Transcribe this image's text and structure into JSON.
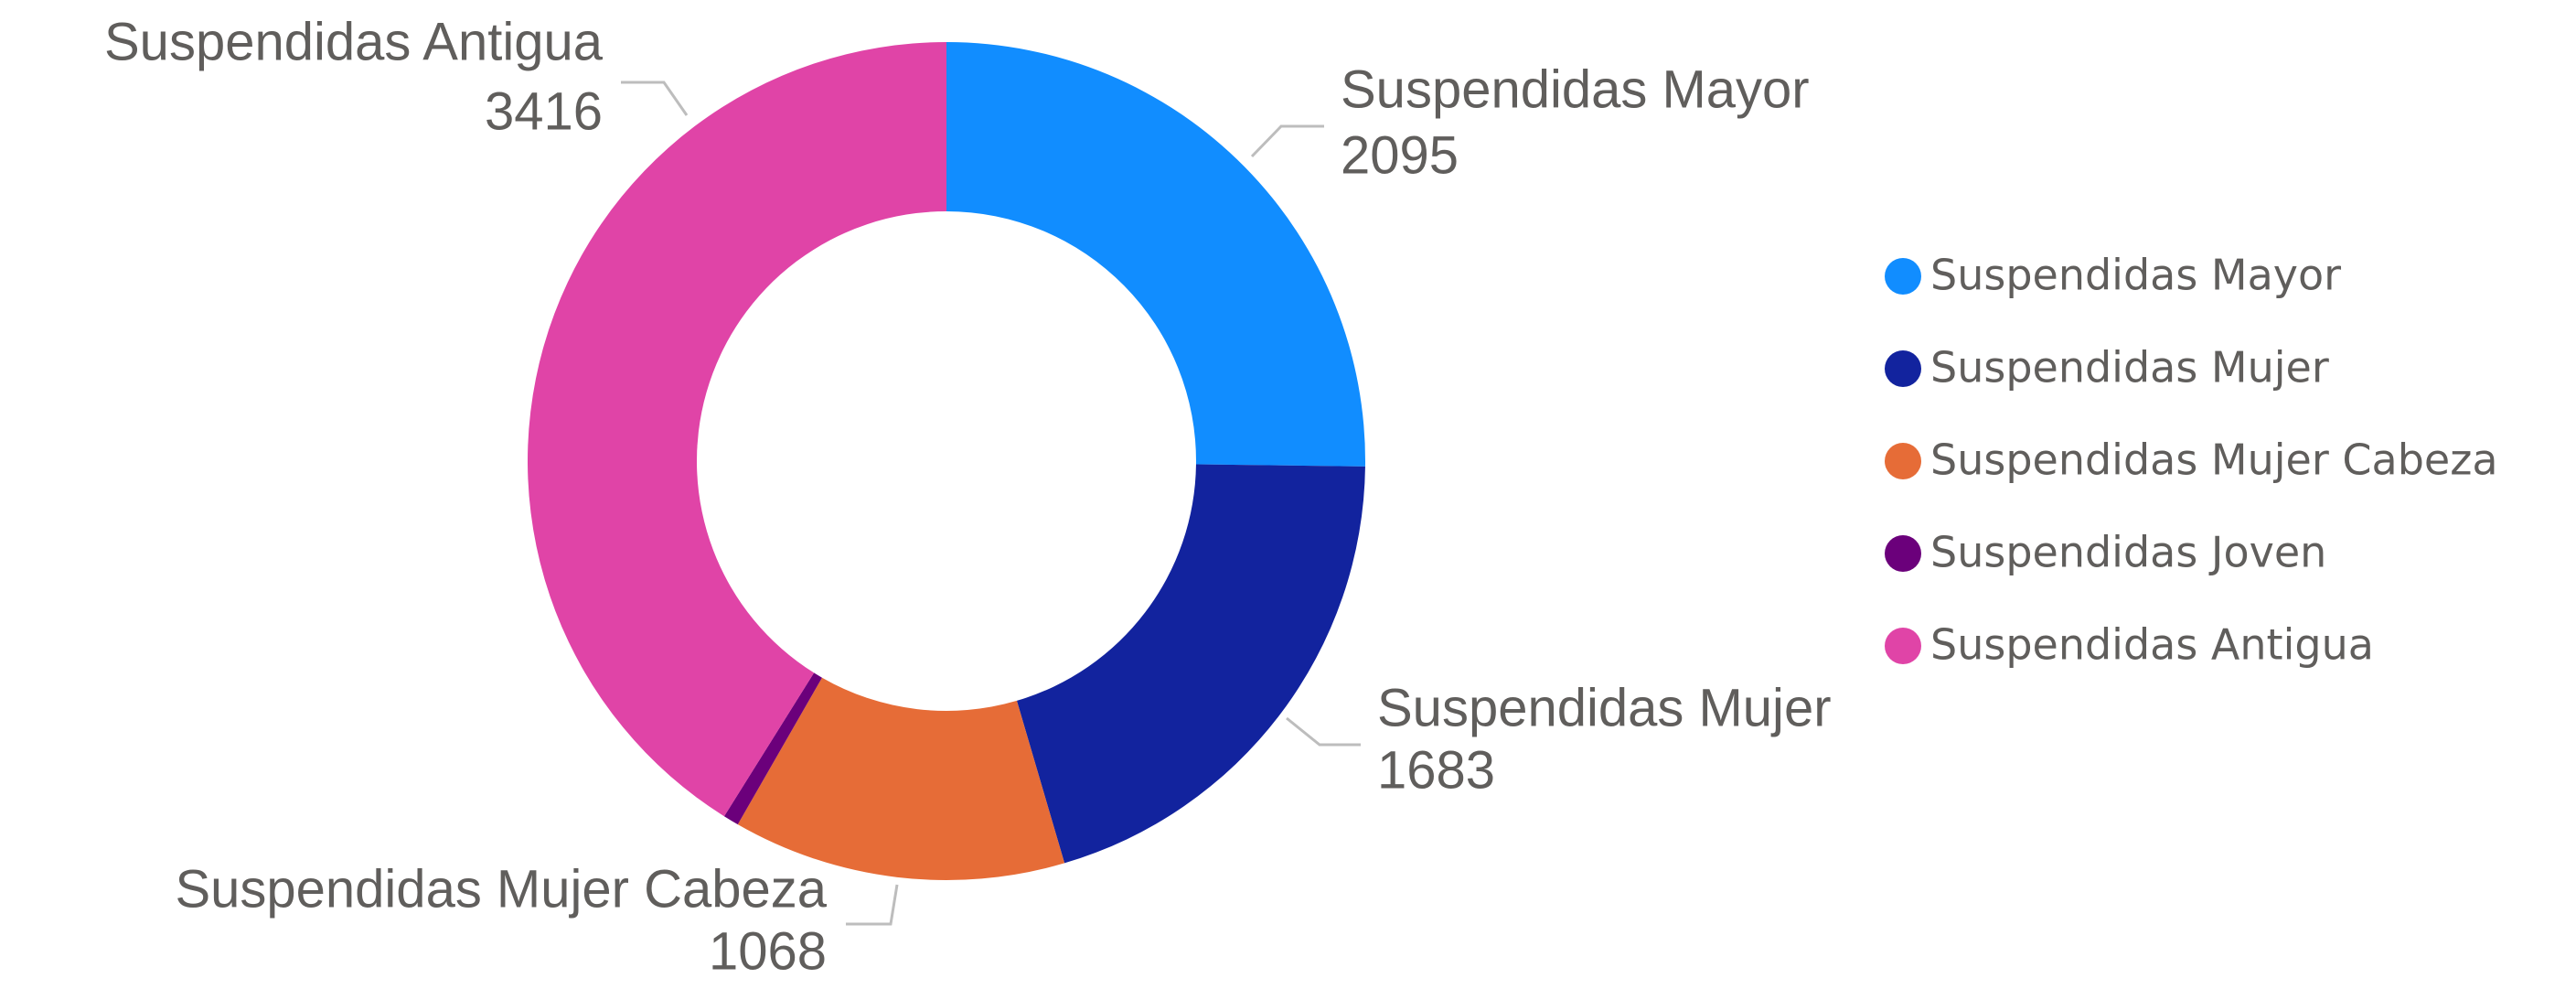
{
  "chart_data": {
    "type": "donut",
    "categories": [
      "Suspendidas Mayor",
      "Suspendidas Mujer",
      "Suspendidas Mujer Cabeza",
      "Suspendidas Joven",
      "Suspendidas Antigua"
    ],
    "values": [
      2095,
      1683,
      1068,
      50,
      3416
    ],
    "colors": [
      "#118dff",
      "#12239e",
      "#e66c37",
      "#6b007b",
      "#e044a7"
    ],
    "legend": "right"
  }
}
